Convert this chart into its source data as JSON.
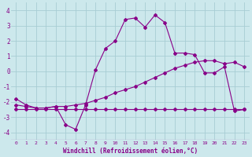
{
  "xlabel": "Windchill (Refroidissement éolien,°C)",
  "bg_color": "#cce8ec",
  "grid_color": "#a8cdd4",
  "line_color": "#880088",
  "xlim": [
    -0.5,
    23.5
  ],
  "ylim": [
    -4.5,
    4.5
  ],
  "xticks": [
    0,
    1,
    2,
    3,
    4,
    5,
    6,
    7,
    8,
    9,
    10,
    11,
    12,
    13,
    14,
    15,
    16,
    17,
    18,
    19,
    20,
    21,
    22,
    23
  ],
  "yticks": [
    -4,
    -3,
    -2,
    -1,
    0,
    1,
    2,
    3,
    4
  ],
  "curve_flat_x": [
    0,
    1,
    2,
    3,
    4,
    5,
    6,
    7,
    8,
    9,
    10,
    11,
    12,
    13,
    14,
    15,
    16,
    17,
    18,
    19,
    20,
    21,
    22,
    23
  ],
  "curve_flat_y": [
    -2.5,
    -2.5,
    -2.5,
    -2.5,
    -2.5,
    -2.5,
    -2.5,
    -2.5,
    -2.5,
    -2.5,
    -2.5,
    -2.5,
    -2.5,
    -2.5,
    -2.5,
    -2.5,
    -2.5,
    -2.5,
    -2.5,
    -2.5,
    -2.5,
    -2.5,
    -2.5,
    -2.5
  ],
  "curve_diag_x": [
    0,
    1,
    2,
    3,
    4,
    5,
    6,
    7,
    8,
    9,
    10,
    11,
    12,
    13,
    14,
    15,
    16,
    17,
    18,
    19,
    20,
    21,
    22,
    23
  ],
  "curve_diag_y": [
    -2.2,
    -2.3,
    -2.4,
    -2.4,
    -2.3,
    -2.3,
    -2.2,
    -2.1,
    -1.9,
    -1.7,
    -1.4,
    -1.2,
    -1.0,
    -0.7,
    -0.4,
    -0.1,
    0.2,
    0.4,
    0.6,
    0.7,
    0.7,
    0.5,
    0.6,
    0.3
  ],
  "curve_main_x": [
    0,
    1,
    2,
    3,
    4,
    5,
    6,
    7,
    8,
    9,
    10,
    11,
    12,
    13,
    14,
    15,
    16,
    17,
    18,
    19,
    20,
    21,
    22,
    23
  ],
  "curve_main_y": [
    -1.8,
    -2.2,
    -2.4,
    -2.4,
    -2.3,
    -3.5,
    -3.8,
    -2.2,
    0.1,
    1.5,
    2.0,
    3.4,
    3.5,
    2.9,
    3.7,
    3.2,
    1.2,
    1.2,
    1.1,
    -0.1,
    -0.1,
    0.3,
    -2.6,
    -2.5
  ]
}
